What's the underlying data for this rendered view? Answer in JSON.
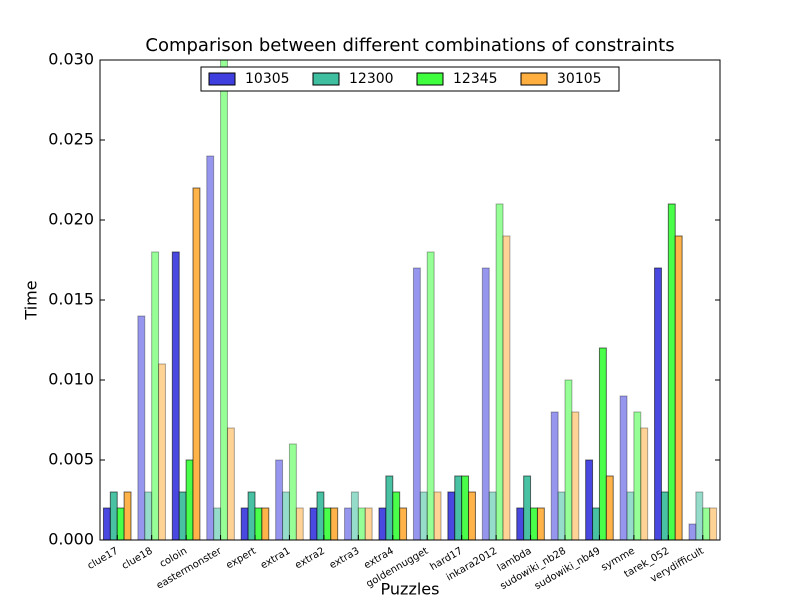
{
  "chart_data": {
    "type": "bar",
    "title": "Comparison between different combinations of constraints",
    "x_label": "Puzzles",
    "y_label": "Time",
    "categories": [
      "clue17",
      "clue18",
      "coloin",
      "eastermonster",
      "expert",
      "extra1",
      "extra2",
      "extra3",
      "extra4",
      "goldennugget",
      "hard17",
      "inkara2012",
      "lambda",
      "sudowiki_nb28",
      "sudowiki_nb49",
      "symme",
      "tarek_052",
      "verydifficult"
    ],
    "series": [
      {
        "name": "10305",
        "color": "#3f3fe0",
        "values": [
          0.002,
          0.014,
          0.018,
          0.024,
          0.002,
          0.005,
          0.002,
          0.002,
          0.002,
          0.017,
          0.003,
          0.017,
          0.002,
          0.008,
          0.005,
          0.009,
          0.017,
          0.001
        ]
      },
      {
        "name": "12300",
        "color": "#3fbf9f",
        "values": [
          0.003,
          0.003,
          0.003,
          0.002,
          0.003,
          0.003,
          0.003,
          0.003,
          0.004,
          0.003,
          0.004,
          0.003,
          0.004,
          0.003,
          0.002,
          0.003,
          0.003,
          0.003
        ]
      },
      {
        "name": "12345",
        "color": "#3fff3f",
        "values": [
          0.002,
          0.018,
          0.005,
          0.03,
          0.002,
          0.006,
          0.002,
          0.002,
          0.003,
          0.018,
          0.004,
          0.021,
          0.002,
          0.01,
          0.012,
          0.008,
          0.021,
          0.002
        ]
      },
      {
        "name": "30105",
        "color": "#ffaf3f",
        "values": [
          0.003,
          0.011,
          0.022,
          0.007,
          0.002,
          0.002,
          0.002,
          0.002,
          0.002,
          0.003,
          0.003,
          0.019,
          0.002,
          0.008,
          0.004,
          0.007,
          0.019,
          0.002
        ]
      }
    ],
    "ylim": [
      0,
      0.03
    ],
    "yticks": [
      {
        "value": 0,
        "label": "0.000"
      },
      0.005,
      {
        "value": 0.01,
        "label": "0.010"
      },
      0.015,
      {
        "value": 0.02,
        "label": "0.020"
      },
      0.025,
      {
        "value": 0.03,
        "label": "0.030"
      }
    ],
    "legend": "upper center",
    "grid": false
  }
}
